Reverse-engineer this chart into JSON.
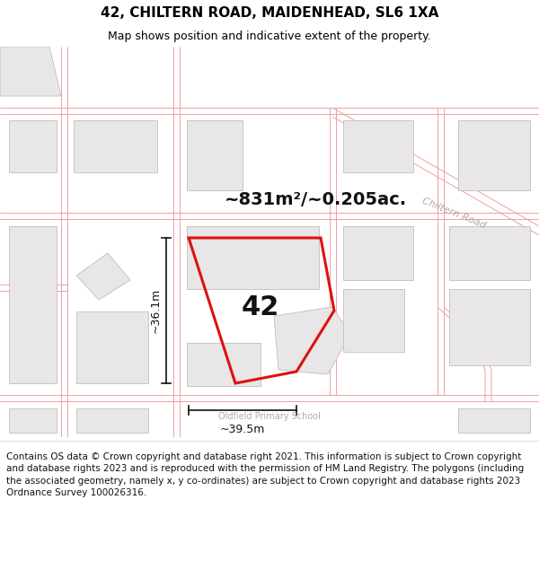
{
  "title": "42, CHILTERN ROAD, MAIDENHEAD, SL6 1XA",
  "subtitle": "Map shows position and indicative extent of the property.",
  "footer_text": "Contains OS data © Crown copyright and database right 2021. This information is subject to Crown copyright and database rights 2023 and is reproduced with the permission of HM Land Registry. The polygons (including the associated geometry, namely x, y co-ordinates) are subject to Crown copyright and database rights 2023 Ordnance Survey 100026316.",
  "area_label": "~831m²/~0.205ac.",
  "property_number": "42",
  "dim_width": "~39.5m",
  "dim_height": "~36.1m",
  "road_label": "Chiltern Road",
  "school_label": "Oldfield Primary School",
  "map_bg": "#ffffff",
  "road_color": "#f0a0a0",
  "road_lw": 0.7,
  "property_polygon_color": "#dd1111",
  "building_edge_color": "#c0bebe",
  "building_fill": "#e8e6e6",
  "dim_line_color": "#111111",
  "title_fontsize": 11,
  "subtitle_fontsize": 9,
  "footer_fontsize": 7.5,
  "area_fontsize": 14,
  "label42_fontsize": 22,
  "road_label_fontsize": 8,
  "school_label_fontsize": 7
}
